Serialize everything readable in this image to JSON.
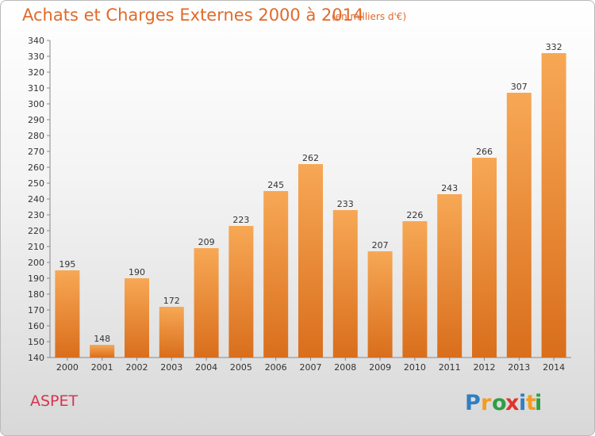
{
  "title": "Achats et Charges Externes 2000 à 2014",
  "subtitle": "(en milliers d'€)",
  "commune": "ASPET",
  "logo": {
    "text": "Proxiti",
    "letters": [
      {
        "ch": "P",
        "color": "#2f7fc1"
      },
      {
        "ch": "r",
        "color": "#f39c1f"
      },
      {
        "ch": "o",
        "color": "#2f9e44"
      },
      {
        "ch": "x",
        "color": "#e0342f"
      },
      {
        "ch": "i",
        "color": "#2f7fc1"
      },
      {
        "ch": "t",
        "color": "#f39c1f"
      },
      {
        "ch": "i",
        "color": "#2f9e44"
      }
    ]
  },
  "colors": {
    "bar_top": "#f7a855",
    "bar_bottom": "#d96e1c",
    "title": "#e06a2b",
    "commune": "#d4364f"
  },
  "chart_data": {
    "type": "bar",
    "title": "Achats et Charges Externes 2000 à 2014",
    "subtitle": "(en milliers d'€)",
    "categories": [
      "2000",
      "2001",
      "2002",
      "2003",
      "2004",
      "2005",
      "2006",
      "2007",
      "2008",
      "2009",
      "2010",
      "2011",
      "2012",
      "2013",
      "2014"
    ],
    "values": [
      195,
      148,
      190,
      172,
      209,
      223,
      245,
      262,
      233,
      207,
      226,
      243,
      266,
      307,
      332
    ],
    "ylim": [
      140,
      340
    ],
    "yticks": [
      140,
      150,
      160,
      170,
      180,
      190,
      200,
      210,
      220,
      230,
      240,
      250,
      260,
      270,
      280,
      290,
      300,
      310,
      320,
      330,
      340
    ],
    "grid": false,
    "data_labels": true
  }
}
